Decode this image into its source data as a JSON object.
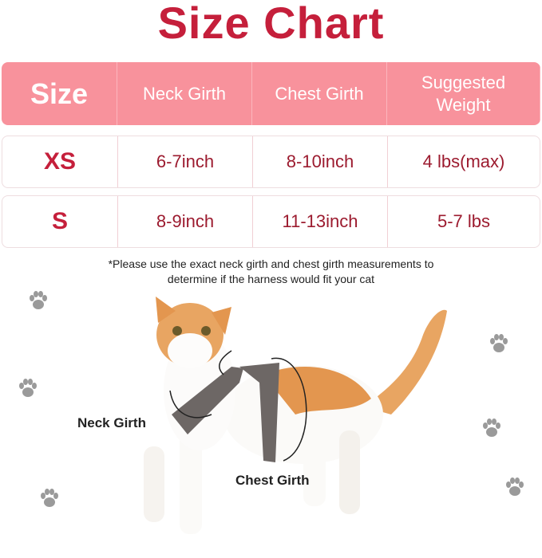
{
  "title": "Size Chart",
  "table": {
    "headers": [
      "Size",
      "Neck Girth",
      "Chest Girth",
      "Suggested Weight"
    ],
    "rows": [
      [
        "XS",
        "6-7inch",
        "8-10inch",
        "4 lbs(max)"
      ],
      [
        "S",
        "8-9inch",
        "11-13inch",
        "5-7 lbs"
      ]
    ]
  },
  "note": "*Please use the exact neck girth and chest girth measurements to determine if the harness would fit your cat",
  "labels": {
    "neck": "Neck Girth",
    "chest": "Chest Girth"
  },
  "colors": {
    "title": "#c51f3b",
    "header_bg": "#f8929c",
    "cell_text": "#9c1b2f",
    "paw": "#9a9a9a"
  },
  "icons": [
    "paw-print-icon"
  ]
}
